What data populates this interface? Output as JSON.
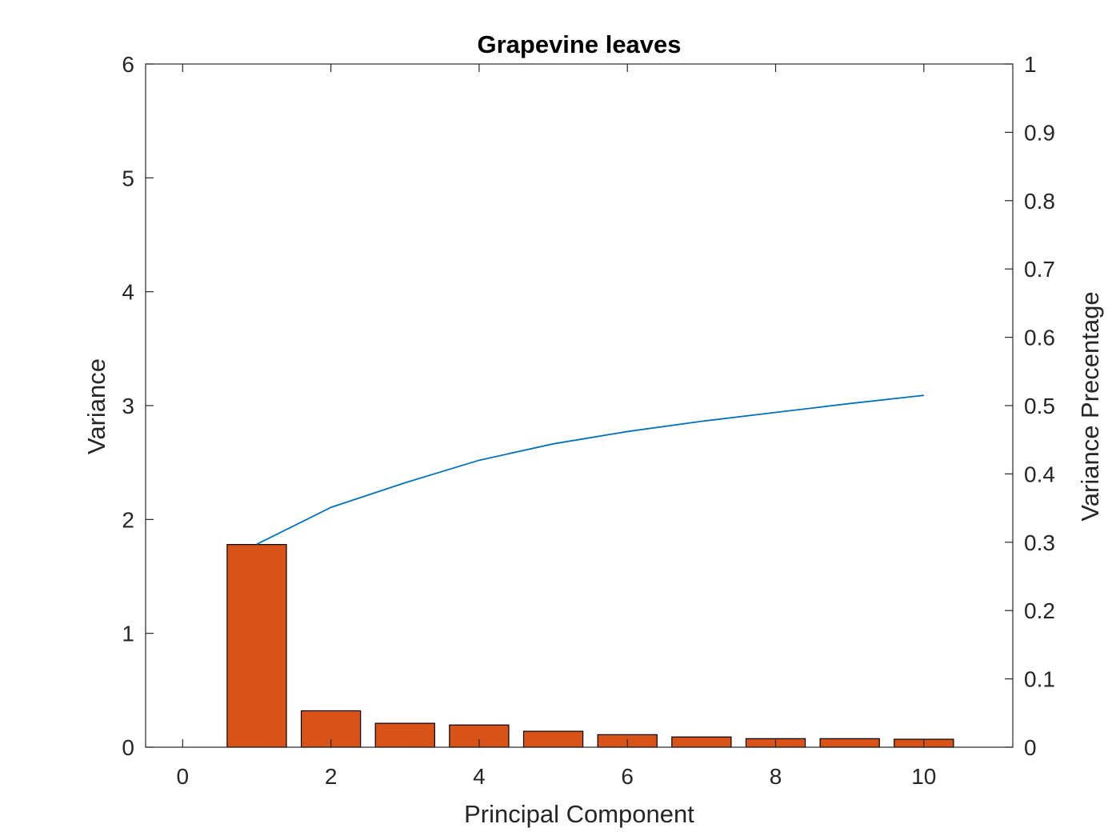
{
  "chart_data": {
    "type": "bar",
    "title": "Grapevine leaves",
    "xlabel": "Principal Component",
    "ylabel": "Variance",
    "ylabel_right": "Variance Precentage",
    "xlim": [
      -0.5,
      11.2
    ],
    "ylim": [
      0,
      6
    ],
    "ylim_right": [
      0,
      1
    ],
    "x_ticks": [
      0,
      2,
      4,
      6,
      8,
      10
    ],
    "y_ticks": [
      0,
      1,
      2,
      3,
      4,
      5,
      6
    ],
    "y_ticks_right": [
      0,
      0.1,
      0.2,
      0.3,
      0.4,
      0.5,
      0.6,
      0.7,
      0.8,
      0.9,
      1
    ],
    "grid": false,
    "series": [
      {
        "type": "bar",
        "axis": "left",
        "color": "#D95319",
        "x": [
          1,
          2,
          3,
          4,
          5,
          6,
          7,
          8,
          9,
          10
        ],
        "values": [
          1.78,
          0.32,
          0.21,
          0.195,
          0.14,
          0.11,
          0.09,
          0.075,
          0.075,
          0.07
        ]
      },
      {
        "type": "line",
        "axis": "right",
        "color": "#0072BD",
        "x": [
          1,
          2,
          3,
          4,
          5,
          6,
          7,
          8,
          9,
          10
        ],
        "values": [
          0.297,
          0.351,
          0.387,
          0.42,
          0.444,
          0.462,
          0.477,
          0.49,
          0.503,
          0.515
        ]
      }
    ]
  }
}
